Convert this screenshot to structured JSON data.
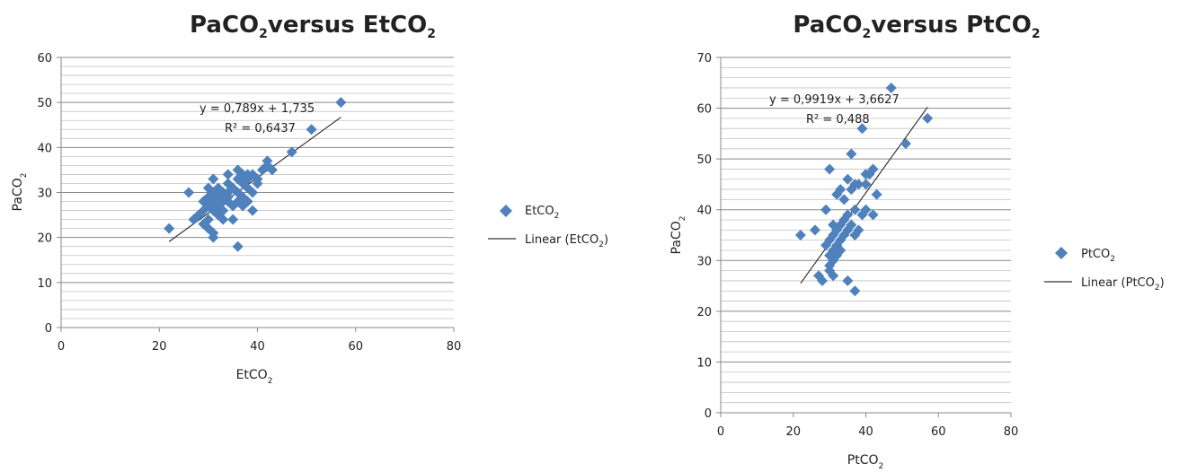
{
  "charts": [
    {
      "title": "PaCO",
      "title_sub": "2",
      "title_mid": "versus EtCO",
      "title_sub2": "2",
      "xlabel": "EtCO",
      "xlabel_sub": "2",
      "ylabel": "PaCO",
      "ylabel_sub": "2",
      "equation": "y = 0,789x + 1,735",
      "r2": "R² = 0,6437",
      "legend_marker_label": "EtCO",
      "legend_marker_sub": "2",
      "legend_line_label": "Linear (EtCO",
      "legend_line_sub": "2",
      "legend_line_close": ")"
    },
    {
      "title": "PaCO",
      "title_sub": "2",
      "title_mid": "versus PtCO",
      "title_sub2": "2",
      "xlabel": "PtCO",
      "xlabel_sub": "2",
      "ylabel": "PaCO",
      "ylabel_sub": "2",
      "equation": "y = 0,9919x + 3,6627",
      "r2": "R² = 0,488",
      "legend_marker_label": "PtCO",
      "legend_marker_sub": "2",
      "legend_line_label": "Linear (PtCO",
      "legend_line_sub": "2",
      "legend_line_close": ")"
    }
  ],
  "chart_data": [
    {
      "type": "scatter",
      "title": "PaCO2 versus EtCO2",
      "xlabel": "EtCO2",
      "ylabel": "PaCO2",
      "xlim": [
        0,
        80
      ],
      "ylim": [
        0,
        60
      ],
      "xticks": [
        0,
        20,
        40,
        60,
        80
      ],
      "yticks": [
        0,
        10,
        20,
        30,
        40,
        50,
        60
      ],
      "minor_grid_step": 2,
      "grid": true,
      "legend_position": "right",
      "marker_color": "#4f81bd",
      "trendline": {
        "slope": 0.789,
        "intercept": 1.735,
        "x_range": [
          22,
          57
        ],
        "color": "#333333"
      },
      "series": [
        {
          "name": "EtCO2",
          "points": [
            [
              22,
              22
            ],
            [
              26,
              30
            ],
            [
              27,
              24
            ],
            [
              28,
              25
            ],
            [
              29,
              23
            ],
            [
              29,
              26
            ],
            [
              29,
              28
            ],
            [
              30,
              31
            ],
            [
              30,
              29
            ],
            [
              30,
              27
            ],
            [
              30,
              24
            ],
            [
              30,
              22
            ],
            [
              31,
              33
            ],
            [
              31,
              30
            ],
            [
              31,
              28
            ],
            [
              31,
              26
            ],
            [
              31,
              21
            ],
            [
              31,
              20
            ],
            [
              32,
              31
            ],
            [
              32,
              29
            ],
            [
              32,
              27
            ],
            [
              32,
              25
            ],
            [
              33,
              30
            ],
            [
              33,
              28
            ],
            [
              33,
              24
            ],
            [
              33,
              26
            ],
            [
              34,
              34
            ],
            [
              34,
              32
            ],
            [
              34,
              30
            ],
            [
              34,
              28
            ],
            [
              34,
              29
            ],
            [
              35,
              31
            ],
            [
              35,
              27
            ],
            [
              35,
              24
            ],
            [
              36,
              35
            ],
            [
              36,
              33
            ],
            [
              36,
              30
            ],
            [
              36,
              28
            ],
            [
              36,
              18
            ],
            [
              37,
              34
            ],
            [
              37,
              32
            ],
            [
              37,
              29
            ],
            [
              37,
              27
            ],
            [
              38,
              34
            ],
            [
              38,
              31
            ],
            [
              38,
              28
            ],
            [
              38,
              33
            ],
            [
              39,
              34
            ],
            [
              39,
              30
            ],
            [
              39,
              26
            ],
            [
              40,
              33
            ],
            [
              40,
              32
            ],
            [
              41,
              35
            ],
            [
              42,
              37
            ],
            [
              42,
              36
            ],
            [
              43,
              35
            ],
            [
              47,
              39
            ],
            [
              51,
              44
            ],
            [
              57,
              50
            ]
          ]
        }
      ]
    },
    {
      "type": "scatter",
      "title": "PaCO2 versus PtCO2",
      "xlabel": "PtCO2",
      "ylabel": "PaCO2",
      "xlim": [
        0,
        80
      ],
      "ylim": [
        0,
        70
      ],
      "xticks": [
        0,
        20,
        40,
        60,
        80
      ],
      "yticks": [
        0,
        10,
        20,
        30,
        40,
        50,
        60,
        70
      ],
      "minor_grid_step": 2,
      "grid": true,
      "legend_position": "right",
      "marker_color": "#4f81bd",
      "trendline": {
        "slope": 0.9919,
        "intercept": 3.6627,
        "x_range": [
          22,
          57
        ],
        "color": "#333333"
      },
      "series": [
        {
          "name": "PtCO2",
          "points": [
            [
              22,
              35
            ],
            [
              26,
              36
            ],
            [
              27,
              27
            ],
            [
              28,
              26
            ],
            [
              29,
              33
            ],
            [
              29,
              40
            ],
            [
              30,
              29
            ],
            [
              30,
              28
            ],
            [
              30,
              31
            ],
            [
              30,
              34
            ],
            [
              30,
              48
            ],
            [
              31,
              27
            ],
            [
              31,
              30
            ],
            [
              31,
              32
            ],
            [
              31,
              35
            ],
            [
              31,
              37
            ],
            [
              32,
              31
            ],
            [
              32,
              33
            ],
            [
              32,
              36
            ],
            [
              32,
              43
            ],
            [
              33,
              32
            ],
            [
              33,
              34
            ],
            [
              33,
              37
            ],
            [
              33,
              44
            ],
            [
              34,
              35
            ],
            [
              34,
              38
            ],
            [
              34,
              42
            ],
            [
              35,
              26
            ],
            [
              35,
              36
            ],
            [
              35,
              39
            ],
            [
              35,
              46
            ],
            [
              36,
              44
            ],
            [
              36,
              37
            ],
            [
              36,
              51
            ],
            [
              37,
              24
            ],
            [
              37,
              35
            ],
            [
              37,
              40
            ],
            [
              37,
              45
            ],
            [
              38,
              36
            ],
            [
              38,
              45
            ],
            [
              39,
              39
            ],
            [
              39,
              56
            ],
            [
              40,
              40
            ],
            [
              40,
              47
            ],
            [
              40,
              45
            ],
            [
              41,
              47
            ],
            [
              42,
              39
            ],
            [
              42,
              48
            ],
            [
              43,
              43
            ],
            [
              47,
              64
            ],
            [
              51,
              53
            ],
            [
              57,
              58
            ]
          ]
        }
      ]
    }
  ]
}
